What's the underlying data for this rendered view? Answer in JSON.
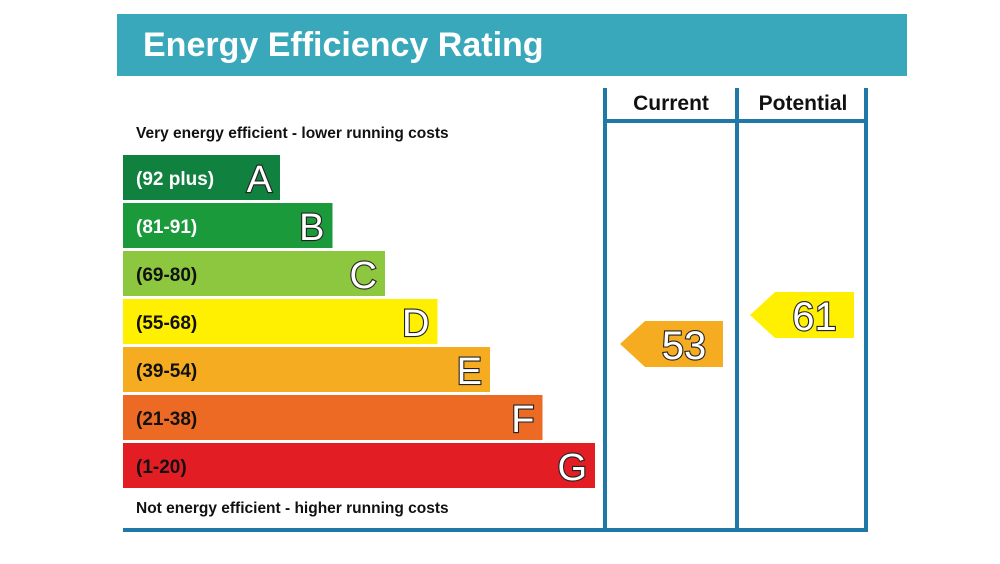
{
  "chart_data": {
    "type": "bar",
    "title": "Energy Efficiency Rating",
    "top_note": "Very energy efficient - lower running costs",
    "bottom_note": "Not energy efficient - higher running costs",
    "columns": [
      "Current",
      "Potential"
    ],
    "bands": [
      {
        "letter": "A",
        "range": "(92 plus)",
        "color": "#10813f",
        "text_color": "#ffffff"
      },
      {
        "letter": "B",
        "range": "(81-91)",
        "color": "#1b9a3c",
        "text_color": "#ffffff"
      },
      {
        "letter": "C",
        "range": "(69-80)",
        "color": "#8dc63f",
        "text_color": "#111111"
      },
      {
        "letter": "D",
        "range": "(55-68)",
        "color": "#ffef00",
        "text_color": "#111111"
      },
      {
        "letter": "E",
        "range": "(39-54)",
        "color": "#f5ac21",
        "text_color": "#111111"
      },
      {
        "letter": "F",
        "range": "(21-38)",
        "color": "#ec6a23",
        "text_color": "#111111"
      },
      {
        "letter": "G",
        "range": "(1-20)",
        "color": "#e31d24",
        "text_color": "#111111"
      }
    ],
    "current": {
      "value": 53,
      "band": "E",
      "color": "#f5ac21"
    },
    "potential": {
      "value": 61,
      "band": "D",
      "color": "#ffef00"
    },
    "header_color": "#3aa8bb",
    "frame_color": "#1f78a6"
  }
}
